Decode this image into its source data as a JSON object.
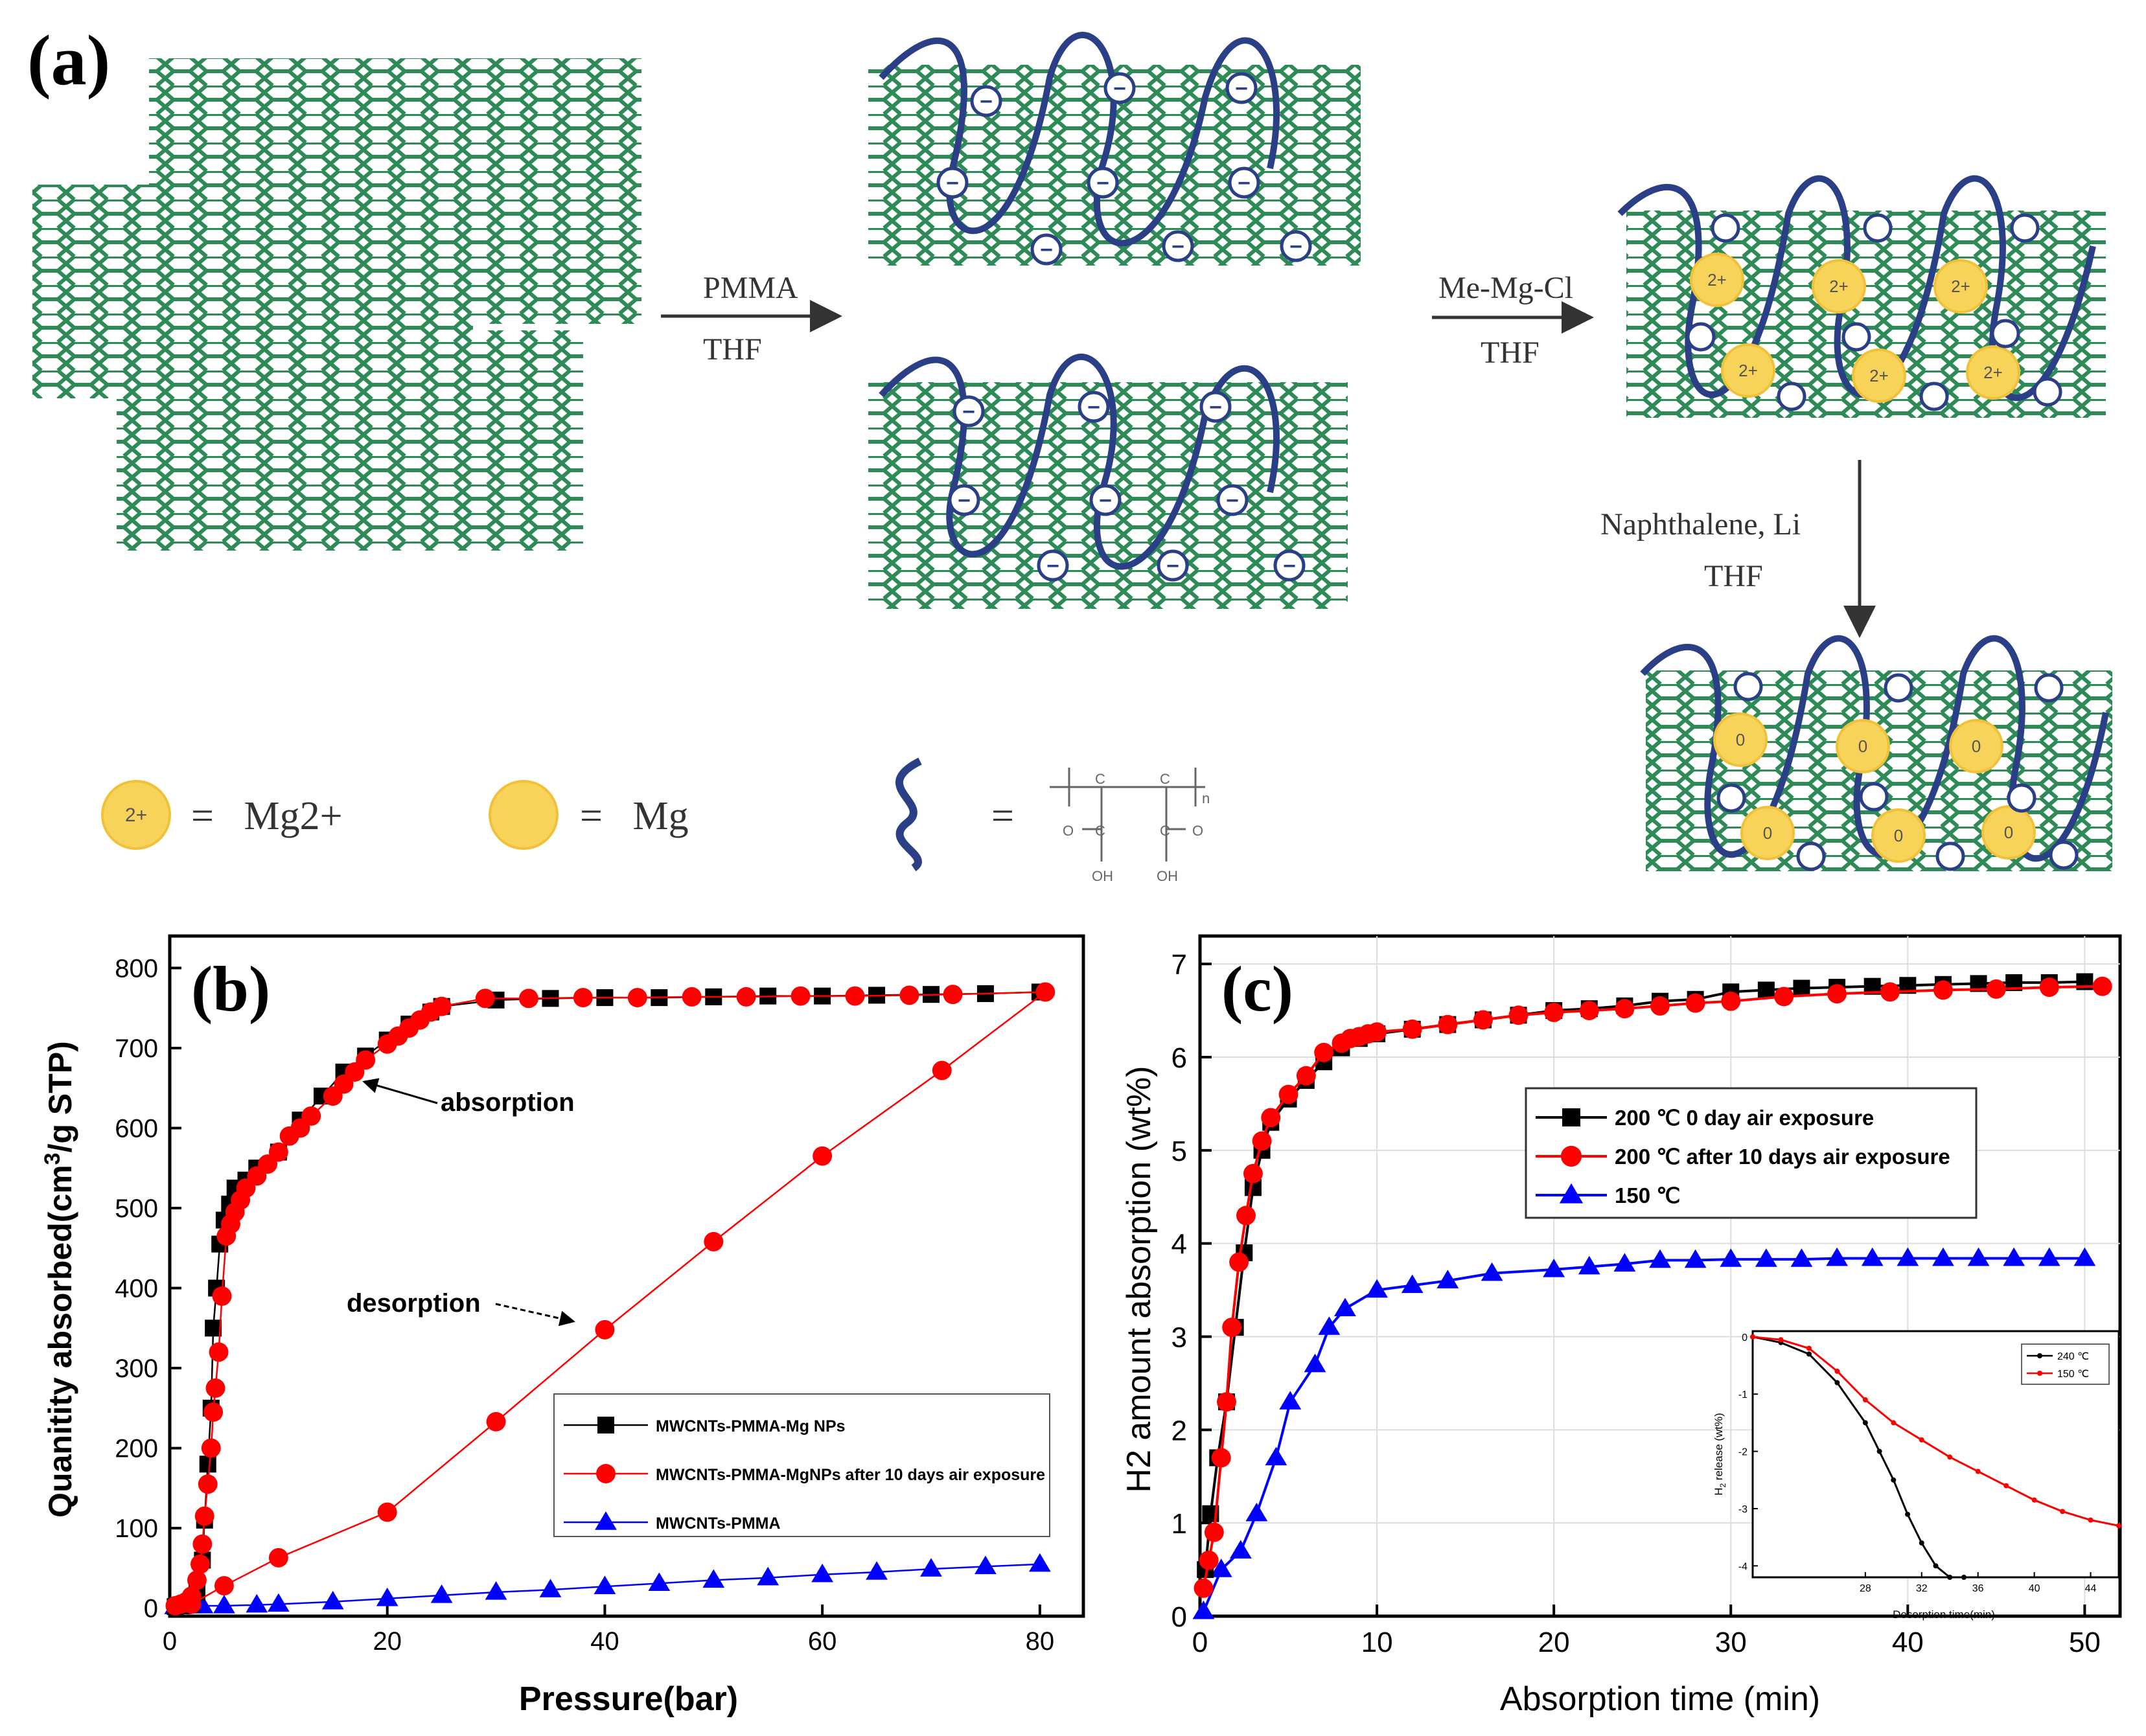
{
  "panel_a": {
    "label": "(a)",
    "step1": {
      "line1": "PMMA",
      "line2": "THF"
    },
    "step2": {
      "line1": "Me-Mg-Cl",
      "line2": "THF"
    },
    "step3": {
      "line1": "Naphthalene, Li",
      "line2": "THF"
    },
    "legend": {
      "mg2_symbol": "2+",
      "mg2_label": "=   Mg2+",
      "mg_label": "=   Mg",
      "pmma_eq": "="
    },
    "ion_symbols": {
      "anion": "−",
      "cation": "2+",
      "metal": "0"
    },
    "formula": {
      "c": "C",
      "o": "O",
      "oh": "OH",
      "n": "n"
    }
  },
  "chart_data": [
    {
      "panel_label": "(b)",
      "type": "line",
      "xlabel": "Pressure(bar)",
      "ylabel": "Quanitity absorbed(cm3/g STP)",
      "ylabel_parts": {
        "pre": "Quanitity absorbed(cm",
        "sup": "3",
        "post": "/g STP)"
      },
      "xlim": [
        0,
        84
      ],
      "ylim": [
        -10,
        840
      ],
      "xticks": [
        "0",
        "20",
        "40",
        "60",
        "80"
      ],
      "yticks": [
        "0",
        "100",
        "200",
        "300",
        "400",
        "500",
        "600",
        "700",
        "800"
      ],
      "annotations": {
        "absorption": "absorption",
        "desorption": "desorption"
      },
      "legend_position": "center-right",
      "series": [
        {
          "name": "MWCNTs-PMMA-Mg NPs",
          "color": "#000000",
          "marker": "square",
          "x": [
            0.5,
            1,
            1.5,
            2,
            2.5,
            3,
            3.2,
            3.5,
            3.8,
            4,
            4.3,
            4.6,
            5,
            5.5,
            6,
            7,
            8,
            10,
            12,
            14,
            16,
            18,
            20,
            22,
            24,
            25,
            30,
            35,
            40,
            45,
            50,
            55,
            60,
            65,
            70,
            75,
            80
          ],
          "y": [
            2,
            3,
            4,
            5,
            20,
            60,
            110,
            180,
            250,
            350,
            400,
            455,
            485,
            505,
            525,
            535,
            550,
            570,
            610,
            640,
            670,
            690,
            710,
            730,
            745,
            752,
            760,
            762,
            763,
            763,
            764,
            765,
            765,
            766,
            767,
            768,
            770
          ]
        },
        {
          "name": "MWCNTs-PMMA-MgNPs after 10 days air exposure",
          "color": "#ff0000",
          "marker": "circle",
          "x": [
            0.5,
            1,
            1.5,
            2,
            2.5,
            2.8,
            3,
            3.2,
            3.5,
            3.8,
            4,
            4.2,
            4.5,
            4.8,
            5.2,
            5.6,
            6,
            6.5,
            7,
            8,
            9,
            10,
            11,
            12,
            13,
            15,
            16,
            17,
            18,
            20,
            21,
            22,
            23,
            24,
            25,
            29,
            33,
            38,
            43,
            48,
            53,
            58,
            63,
            68,
            72,
            80.5,
            71,
            60,
            50,
            40,
            30,
            20,
            10,
            5,
            2
          ],
          "y": [
            3,
            5,
            8,
            15,
            35,
            55,
            80,
            115,
            155,
            200,
            245,
            275,
            320,
            390,
            465,
            480,
            495,
            510,
            525,
            540,
            555,
            570,
            590,
            600,
            615,
            640,
            655,
            670,
            685,
            705,
            715,
            725,
            735,
            745,
            752,
            762,
            762,
            763,
            763,
            764,
            764,
            765,
            765,
            766,
            767,
            770,
            672,
            565,
            458,
            348,
            233,
            120,
            63,
            28,
            5
          ]
        },
        {
          "name": "MWCNTs-PMMA",
          "color": "#0000ff",
          "marker": "triangle",
          "x": [
            0.5,
            1,
            2,
            3,
            5,
            8,
            10,
            15,
            20,
            25,
            30,
            35,
            40,
            45,
            50,
            55,
            60,
            65,
            70,
            75,
            80
          ],
          "y": [
            2,
            2,
            3,
            3,
            3,
            4,
            5,
            8,
            12,
            16,
            20,
            23,
            27,
            31,
            35,
            38,
            42,
            45,
            49,
            52,
            55
          ]
        }
      ]
    },
    {
      "panel_label": "(c)",
      "type": "line",
      "xlabel": "Absorption time (min)",
      "ylabel": "H2 amount absorption (wt%)",
      "xlim": [
        0,
        52
      ],
      "ylim": [
        0,
        7.3
      ],
      "xticks": [
        "0",
        "10",
        "20",
        "30",
        "40",
        "50"
      ],
      "yticks": [
        "0",
        "1",
        "2",
        "3",
        "4",
        "5",
        "6",
        "7"
      ],
      "legend_position": "top-center",
      "series": [
        {
          "name": "200 ℃ 0 day air exposure",
          "color": "#000000",
          "marker": "square",
          "x": [
            0.3,
            0.6,
            1,
            1.5,
            2,
            2.5,
            3,
            3.5,
            4,
            5,
            6,
            7,
            8,
            9,
            10,
            12,
            14,
            16,
            18,
            20,
            22,
            24,
            26,
            28,
            30,
            32,
            34,
            36,
            38,
            40,
            42,
            44,
            46,
            48,
            50
          ],
          "y": [
            0.5,
            1.1,
            1.7,
            2.3,
            3.1,
            3.9,
            4.6,
            5.0,
            5.3,
            5.55,
            5.75,
            5.95,
            6.1,
            6.2,
            6.25,
            6.3,
            6.35,
            6.4,
            6.45,
            6.5,
            6.52,
            6.55,
            6.6,
            6.62,
            6.7,
            6.72,
            6.74,
            6.75,
            6.76,
            6.77,
            6.78,
            6.79,
            6.8,
            6.8,
            6.81
          ]
        },
        {
          "name": "200 ℃ after 10 days air exposure",
          "color": "#ff0000",
          "marker": "circle",
          "x": [
            0.2,
            0.5,
            0.8,
            1.2,
            1.5,
            1.8,
            2.2,
            2.6,
            3,
            3.5,
            4,
            5,
            6,
            7,
            8,
            8.5,
            9,
            9.5,
            10,
            12,
            14,
            16,
            18,
            20,
            22,
            24,
            26,
            28,
            30,
            33,
            36,
            39,
            42,
            45,
            48,
            51
          ],
          "y": [
            0.3,
            0.6,
            0.9,
            1.7,
            2.3,
            3.1,
            3.8,
            4.3,
            4.75,
            5.1,
            5.35,
            5.6,
            5.8,
            6.05,
            6.15,
            6.2,
            6.22,
            6.25,
            6.27,
            6.3,
            6.35,
            6.4,
            6.45,
            6.48,
            6.5,
            6.52,
            6.55,
            6.58,
            6.6,
            6.65,
            6.68,
            6.7,
            6.72,
            6.73,
            6.75,
            6.76
          ]
        },
        {
          "name": "150 ℃",
          "color": "#0000ff",
          "marker": "triangle",
          "x": [
            0.2,
            1.2,
            2.3,
            3.2,
            4.3,
            5.1,
            6.5,
            7.3,
            8.2,
            10,
            12,
            14,
            16.5,
            20,
            22,
            24,
            26,
            28,
            30,
            32,
            34,
            36,
            38,
            40,
            42,
            44,
            46,
            48,
            50
          ],
          "y": [
            0.05,
            0.5,
            0.7,
            1.1,
            1.7,
            2.3,
            2.7,
            3.1,
            3.3,
            3.5,
            3.55,
            3.6,
            3.68,
            3.72,
            3.75,
            3.78,
            3.82,
            3.82,
            3.83,
            3.83,
            3.83,
            3.84,
            3.84,
            3.84,
            3.84,
            3.84,
            3.84,
            3.84,
            3.84
          ]
        }
      ],
      "inset": {
        "type": "line",
        "xlabel": "Desorption time(min)",
        "ylabel": "H2 release (wt%)",
        "ylabel_parts": {
          "pre": "H",
          "sub": "2",
          "post": " release (wt%)"
        },
        "xlim": [
          20,
          46
        ],
        "ylim": [
          -4.2,
          0.1
        ],
        "xticks": [
          "28",
          "32",
          "36",
          "40",
          "44"
        ],
        "yticks": [
          "0",
          "-1",
          "-2",
          "-3",
          "-4"
        ],
        "legend_position": "top-right",
        "series": [
          {
            "name": "240 ℃",
            "color": "#000000",
            "x": [
              20,
              22,
              24,
              26,
              28,
              29,
              30,
              31,
              32,
              33,
              34,
              35
            ],
            "y": [
              0,
              -0.1,
              -0.3,
              -0.8,
              -1.5,
              -2.0,
              -2.5,
              -3.1,
              -3.6,
              -4.0,
              -4.2,
              -4.3
            ]
          },
          {
            "name": "150 ℃",
            "color": "#ff0000",
            "x": [
              20,
              22,
              24,
              26,
              28,
              30,
              32,
              34,
              36,
              38,
              40,
              42,
              44,
              46
            ],
            "y": [
              0,
              -0.05,
              -0.2,
              -0.6,
              -1.1,
              -1.5,
              -1.8,
              -2.1,
              -2.35,
              -2.6,
              -2.85,
              -3.05,
              -3.2,
              -3.3
            ]
          }
        ]
      }
    }
  ]
}
